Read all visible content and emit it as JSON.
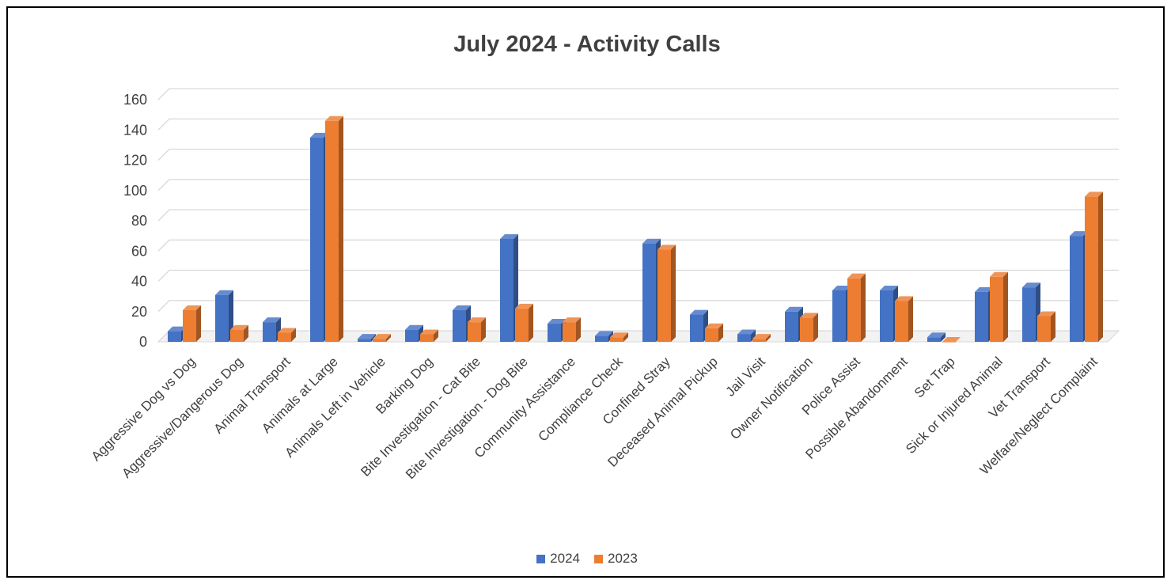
{
  "chart_data": {
    "type": "bar",
    "title": "July 2024 - Activity Calls",
    "xlabel": "",
    "ylabel": "",
    "ylim": [
      0,
      160
    ],
    "yticks": [
      "0",
      "20",
      "40",
      "60",
      "80",
      "100",
      "120",
      "140",
      "160"
    ],
    "grid": true,
    "legend_position": "bottom",
    "categories": [
      "Aggressive Dog vs Dog",
      "Aggressive/Dangerous Dog",
      "Animal Transport",
      "Animals at Large",
      "Animals Left in Vehicle",
      "Barking Dog",
      "Bite Investigation - Cat Bite",
      "Bite Investigation - Dog Bite",
      "Community Assistance",
      "Compliance Check",
      "Confined Stray",
      "Deceased Animal Pickup",
      "Jail Visit",
      "Owner Notification",
      "Police Assist",
      "Possible Abandonment",
      "Set Trap",
      "Sick or Injured Animal",
      "Vet Transport",
      "Welfare/Neglect Complaint"
    ],
    "series": [
      {
        "name": "2024",
        "color": "#4472C4",
        "values": [
          7,
          31,
          13,
          135,
          2,
          8,
          21,
          68,
          12,
          4,
          65,
          18,
          5,
          20,
          34,
          34,
          3,
          33,
          36,
          70
        ]
      },
      {
        "name": "2023",
        "color": "#ED7D31",
        "values": [
          21,
          8,
          6,
          146,
          2,
          5,
          13,
          22,
          13,
          3,
          61,
          9,
          2,
          16,
          42,
          27,
          0,
          43,
          17,
          96
        ]
      }
    ]
  }
}
